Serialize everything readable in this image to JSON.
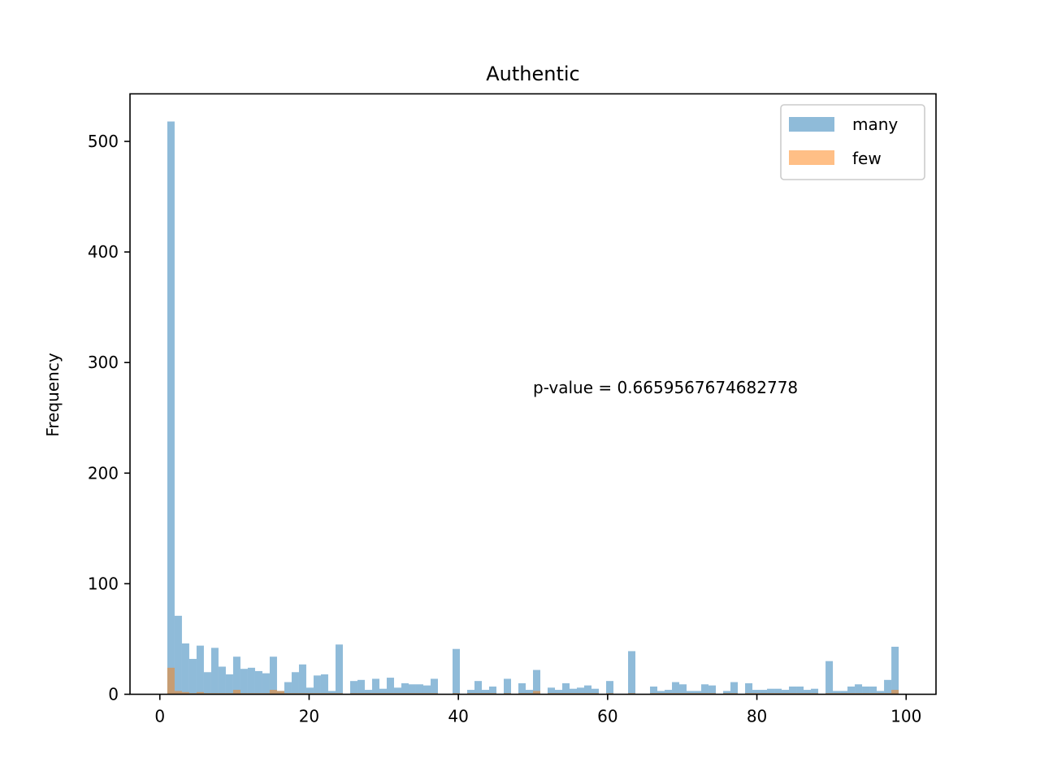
{
  "chart_data": {
    "type": "bar",
    "subtype": "overlaid-histogram",
    "title": "Authentic",
    "xlabel": "",
    "ylabel": "Frequency",
    "xlim": [
      -4,
      104
    ],
    "ylim": [
      0,
      543
    ],
    "xticks": [
      0,
      20,
      40,
      60,
      80,
      100
    ],
    "yticks": [
      0,
      100,
      200,
      300,
      400,
      500
    ],
    "grid": false,
    "legend_position": "top-right",
    "annotation": "p-value = 0.6659567674682778",
    "bin_start": 1,
    "bin_width": 0.98,
    "series": [
      {
        "name": "many",
        "color": "#1f77b4",
        "opacity": 0.5,
        "values": [
          518,
          71,
          46,
          32,
          44,
          20,
          42,
          25,
          18,
          34,
          23,
          24,
          21,
          19,
          34,
          3,
          11,
          20,
          27,
          6,
          17,
          18,
          3,
          45,
          0,
          12,
          13,
          4,
          14,
          5,
          15,
          6,
          10,
          9,
          9,
          8,
          14,
          0,
          0,
          41,
          0,
          4,
          12,
          4,
          7,
          0,
          14,
          0,
          10,
          4,
          22,
          0,
          6,
          4,
          10,
          5,
          6,
          8,
          5,
          0,
          12,
          0,
          0,
          39,
          0,
          0,
          7,
          3,
          4,
          11,
          9,
          3,
          3,
          9,
          8,
          0,
          3,
          11,
          0,
          10,
          4,
          4,
          5,
          5,
          4,
          7,
          7,
          4,
          5,
          0,
          30,
          3,
          3,
          7,
          9,
          7,
          7,
          3,
          13,
          43
        ]
      },
      {
        "name": "few",
        "color": "#ff7f0e",
        "opacity": 0.5,
        "values": [
          24,
          3,
          2,
          1,
          2,
          1,
          1,
          1,
          1,
          4,
          1,
          1,
          1,
          1,
          4,
          3,
          1,
          1,
          1,
          1,
          1,
          1,
          1,
          1,
          0,
          1,
          1,
          1,
          1,
          1,
          1,
          1,
          1,
          1,
          1,
          1,
          1,
          0,
          0,
          1,
          0,
          1,
          1,
          1,
          1,
          0,
          1,
          0,
          1,
          1,
          3,
          0,
          1,
          1,
          1,
          1,
          1,
          1,
          1,
          0,
          1,
          0,
          0,
          1,
          0,
          0,
          1,
          1,
          1,
          1,
          1,
          1,
          1,
          1,
          1,
          0,
          1,
          1,
          0,
          1,
          1,
          1,
          1,
          1,
          1,
          1,
          1,
          1,
          1,
          0,
          1,
          1,
          1,
          1,
          1,
          1,
          1,
          1,
          1,
          4
        ]
      }
    ]
  }
}
